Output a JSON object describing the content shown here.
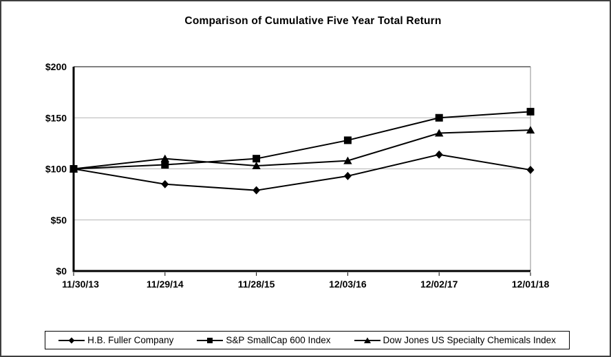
{
  "frame": {
    "background": "#ffffff",
    "border_color": "#3f3f3f"
  },
  "chart_data": {
    "type": "line",
    "title": "Comparison of Cumulative Five Year Total Return",
    "categories": [
      "11/30/13",
      "11/29/14",
      "11/28/15",
      "12/03/16",
      "12/02/17",
      "12/01/18"
    ],
    "series": [
      {
        "name": "H.B. Fuller Company",
        "marker": "diamond",
        "values": [
          100,
          85,
          79,
          93,
          114,
          99
        ]
      },
      {
        "name": "S&P SmallCap 600 Index",
        "marker": "square",
        "values": [
          100,
          104,
          110,
          128,
          150,
          156
        ]
      },
      {
        "name": "Dow Jones US Specialty Chemicals Index",
        "marker": "triangle",
        "values": [
          100,
          110,
          103,
          108,
          135,
          138
        ]
      }
    ],
    "ylim": [
      0,
      200
    ],
    "y_ticks": [
      {
        "value": 0,
        "label": "$0"
      },
      {
        "value": 50,
        "label": "$50"
      },
      {
        "value": 100,
        "label": "$100"
      },
      {
        "value": 150,
        "label": "$150"
      },
      {
        "value": 200,
        "label": "$200"
      }
    ],
    "gridline_values": [
      50,
      100,
      150
    ],
    "grid": true,
    "legend_position": "bottom",
    "colors": {
      "line": "#000000",
      "marker": "#000000",
      "gridline": "#b3b3b3",
      "plot_right_border": "#8c8c8c",
      "plot_top_border": "#000000",
      "axis": "#000000",
      "text": "#000000"
    }
  }
}
